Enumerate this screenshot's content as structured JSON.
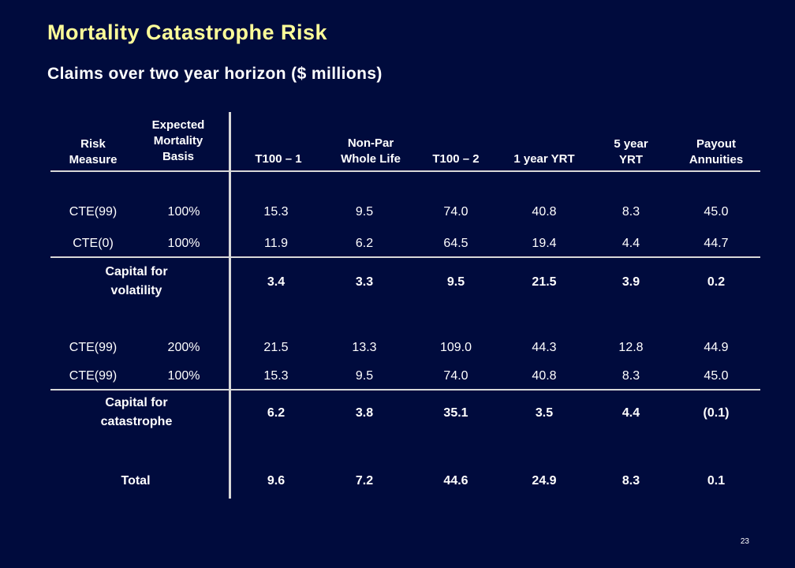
{
  "slide": {
    "title": "Mortality Catastrophe Risk",
    "subtitle": "Claims over two year horizon ($ millions)",
    "page_number": "23",
    "colors": {
      "background": "#000b3d",
      "title": "#ffff99",
      "text": "#ffffff",
      "rules": "#d8d8d8"
    }
  },
  "table": {
    "headers": {
      "risk_measure": [
        "Risk",
        "Measure"
      ],
      "mortality_basis": [
        "Expected",
        "Mortality",
        "Basis"
      ],
      "t100_1": [
        "T100 – 1"
      ],
      "nonpar": [
        "Non-Par",
        "Whole Life"
      ],
      "t100_2": [
        "T100 – 2"
      ],
      "yrt1": [
        "1 year YRT"
      ],
      "yrt5": [
        "5 year",
        "YRT"
      ],
      "payout": [
        "Payout",
        "Annuities"
      ]
    },
    "rows": {
      "r1": [
        "CTE(99)",
        "100%",
        "15.3",
        "9.5",
        "74.0",
        "40.8",
        "8.3",
        "45.0"
      ],
      "r2": [
        "CTE(0)",
        "100%",
        "11.9",
        "6.2",
        "64.5",
        "19.4",
        "4.4",
        "44.7"
      ],
      "vol": {
        "label": [
          "Capital for",
          "volatility"
        ],
        "values": [
          "3.4",
          "3.3",
          "9.5",
          "21.5",
          "3.9",
          "0.2"
        ]
      },
      "r3": [
        "CTE(99)",
        "200%",
        "21.5",
        "13.3",
        "109.0",
        "44.3",
        "12.8",
        "44.9"
      ],
      "r4": [
        "CTE(99)",
        "100%",
        "15.3",
        "9.5",
        "74.0",
        "40.8",
        "8.3",
        "45.0"
      ],
      "cat": {
        "label": [
          "Capital for",
          "catastrophe"
        ],
        "values": [
          "6.2",
          "3.8",
          "35.1",
          "3.5",
          "4.4",
          "(0.1)"
        ]
      },
      "total": {
        "label": "Total",
        "values": [
          "9.6",
          "7.2",
          "44.6",
          "24.9",
          "8.3",
          "0.1"
        ]
      }
    }
  }
}
